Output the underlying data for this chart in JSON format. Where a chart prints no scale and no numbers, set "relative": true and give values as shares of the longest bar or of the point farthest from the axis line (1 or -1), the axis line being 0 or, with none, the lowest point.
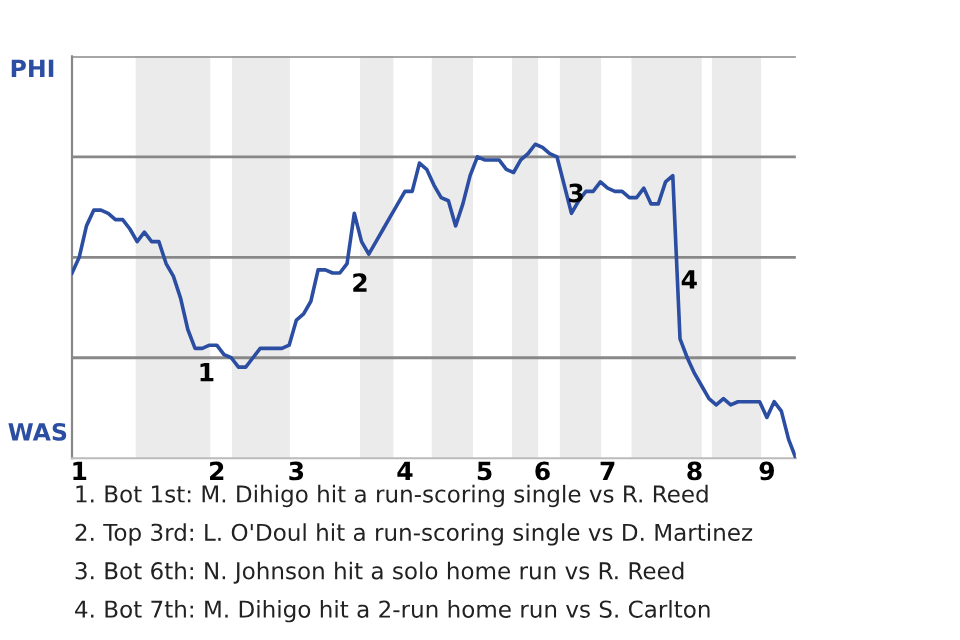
{
  "chart_data": {
    "type": "line",
    "relative": true,
    "categories": [
      null,
      "1",
      null,
      null,
      null,
      null,
      null,
      null,
      null,
      null,
      null,
      null,
      null,
      null,
      null,
      null,
      null,
      null,
      null,
      null,
      "2",
      null,
      null,
      null,
      null,
      null,
      null,
      null,
      null,
      null,
      null,
      "3",
      null,
      null,
      null,
      null,
      null,
      null,
      null,
      null,
      null,
      null,
      null,
      null,
      null,
      null,
      "4",
      null,
      null,
      null,
      null,
      null,
      null,
      null,
      null,
      null,
      null,
      "5",
      null,
      null,
      null,
      null,
      null,
      null,
      null,
      "6",
      null,
      null,
      null,
      null,
      null,
      null,
      null,
      null,
      "7",
      null,
      null,
      null,
      null,
      null,
      null,
      null,
      null,
      null,
      null,
      null,
      "8",
      null,
      null,
      null,
      null,
      null,
      null,
      null,
      null,
      null,
      "9",
      null,
      null,
      null,
      null
    ],
    "series": [
      {
        "color": "#2b4ea2",
        "values": [
          0.59,
          0.64,
          0.74,
          0.79,
          0.79,
          0.78,
          0.76,
          0.76,
          0.73,
          0.69,
          0.72,
          0.69,
          0.69,
          0.62,
          0.58,
          0.51,
          0.41,
          0.35,
          0.35,
          0.36,
          0.36,
          0.33,
          0.32,
          0.29,
          0.29,
          0.32,
          0.35,
          0.35,
          0.35,
          0.35,
          0.36,
          0.44,
          0.46,
          0.5,
          0.6,
          0.6,
          0.59,
          0.59,
          0.62,
          0.78,
          0.69,
          0.65,
          0.69,
          0.73,
          0.77,
          0.81,
          0.85,
          0.85,
          0.94,
          0.92,
          0.87,
          0.83,
          0.82,
          0.74,
          0.81,
          0.9,
          0.96,
          0.95,
          0.95,
          0.95,
          0.92,
          0.91,
          0.95,
          0.97,
          1,
          0.99,
          0.97,
          0.96,
          0.87,
          0.78,
          0.82,
          0.85,
          0.85,
          0.88,
          0.86,
          0.85,
          0.85,
          0.83,
          0.83,
          0.86,
          0.81,
          0.81,
          0.88,
          0.9,
          0.38,
          0.32,
          0.27,
          0.23,
          0.19,
          0.17,
          0.19,
          0.17,
          0.18,
          0.18,
          0.18,
          0.18,
          0.13,
          0.18,
          0.15,
          0.06,
          0
        ]
      }
    ],
    "grid": "y",
    "annotations": [
      "PHI",
      "WAS",
      "1",
      "2",
      "3",
      "4",
      "1. Bot 1st: M. Dihigo hit a run-scoring single vs R. Reed",
      "2. Top 3rd: L. O'Doul hit a run-scoring single vs D. Martinez",
      "3. Bot 6th: N. Johnson hit a solo home run vs R. Reed",
      "4. Bot 7th: M. Dihigo hit a 2-run home run vs S. Carlton"
    ]
  }
}
